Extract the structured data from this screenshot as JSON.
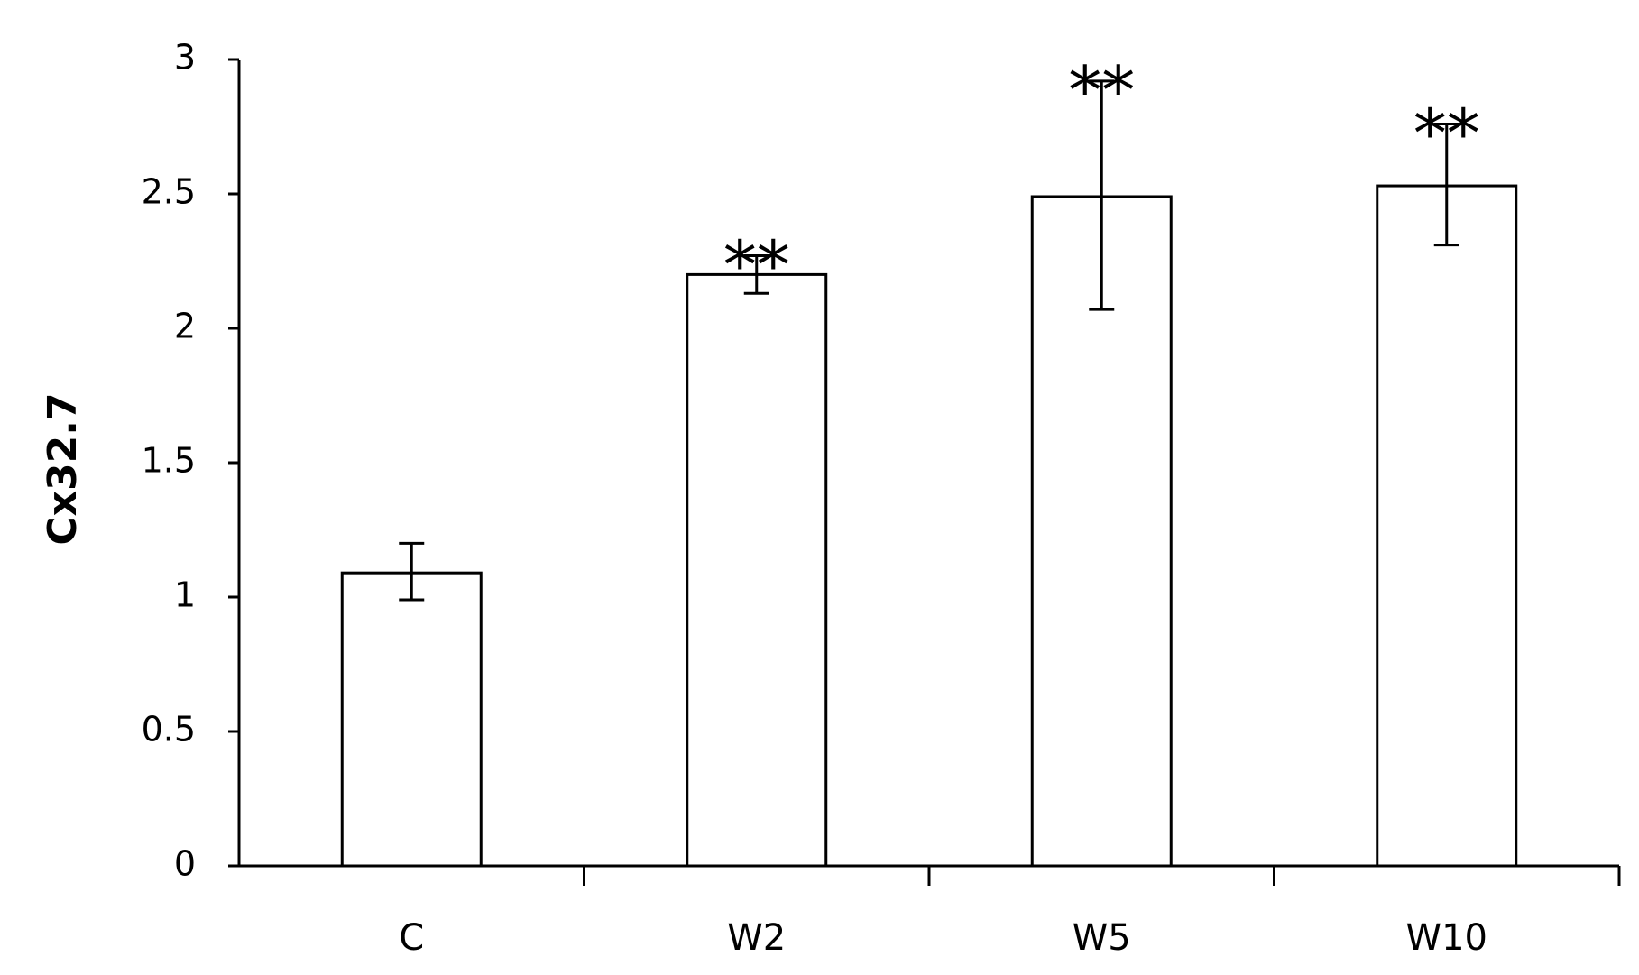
{
  "chart_data": {
    "type": "bar",
    "title": "",
    "xlabel": "",
    "ylabel": "Cx32.7",
    "categories": [
      "C",
      "W2",
      "W5",
      "W10"
    ],
    "values": [
      1.09,
      2.2,
      2.49,
      2.53
    ],
    "error_upper": [
      1.2,
      2.27,
      2.92,
      2.76
    ],
    "error_lower": [
      0.99,
      2.13,
      2.07,
      2.31
    ],
    "annotations": [
      "",
      "**",
      "**",
      "**"
    ],
    "ylim": [
      0,
      3
    ],
    "yticks": [
      "0",
      "0.5",
      "1",
      "1.5",
      "2",
      "2.5",
      "3"
    ],
    "grid": false,
    "legend": "none",
    "colors": {
      "bar_fill": "#ffffff",
      "bar_stroke": "#000000",
      "axis": "#000000"
    }
  }
}
